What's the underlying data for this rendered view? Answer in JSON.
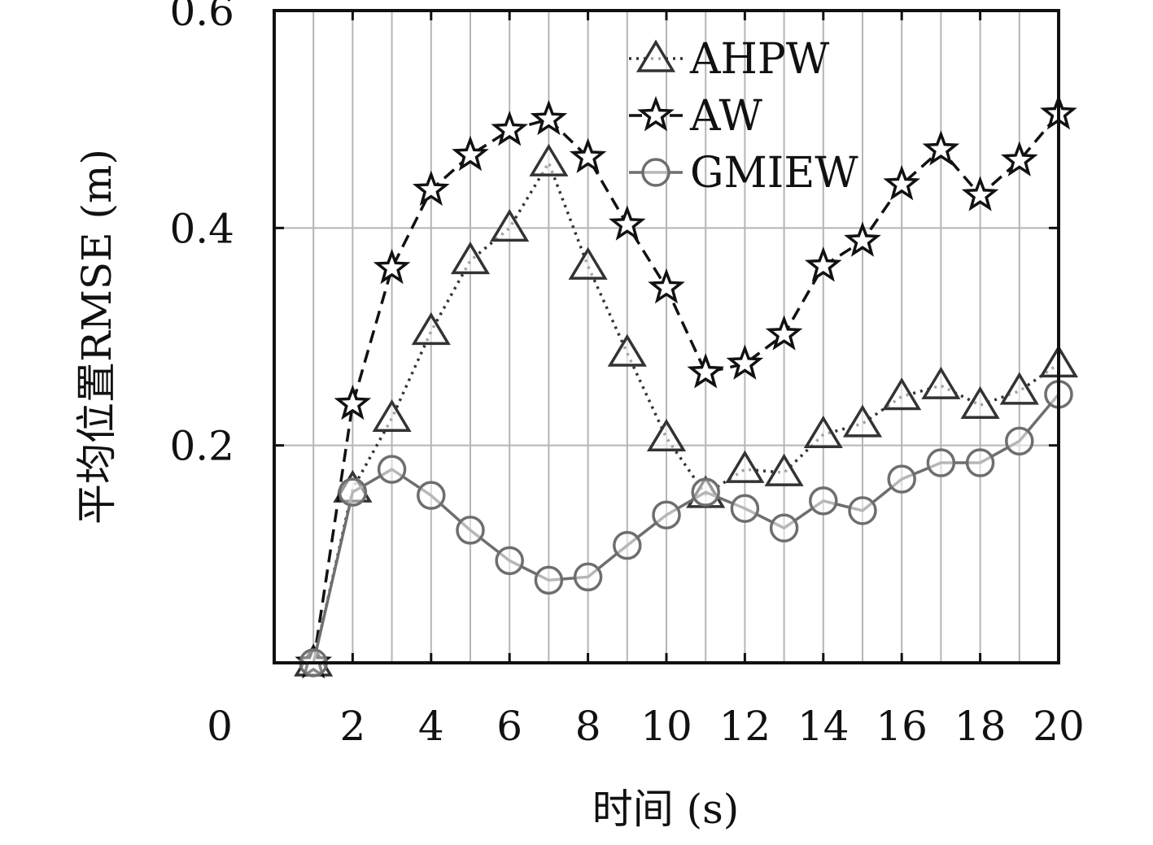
{
  "chart_data": {
    "type": "line",
    "xlabel": "时间 (s)",
    "ylabel": "平均位置RMSE (m)",
    "xlim": [
      0,
      20
    ],
    "ylim": [
      0,
      0.6
    ],
    "xticks": [
      2,
      4,
      6,
      8,
      10,
      12,
      14,
      16,
      18,
      20
    ],
    "xtick_labels": [
      "2",
      "4",
      "6",
      "8",
      "10",
      "12",
      "14",
      "16",
      "18",
      "20"
    ],
    "yticks": [
      0.2,
      0.4,
      0.6
    ],
    "ytick_labels": [
      "0.2",
      "0.4",
      "0.6"
    ],
    "origin_label": "0",
    "grid": true,
    "legend_position": "top-right",
    "x": [
      1,
      2,
      3,
      4,
      5,
      6,
      7,
      8,
      9,
      10,
      11,
      12,
      13,
      14,
      15,
      16,
      17,
      18,
      19,
      20
    ],
    "series": [
      {
        "name": "AHPW",
        "marker": "triangle",
        "line_style": "dotted",
        "color": "#333333",
        "values": [
          0.0,
          0.16,
          0.225,
          0.305,
          0.37,
          0.4,
          0.46,
          0.365,
          0.285,
          0.207,
          0.155,
          0.178,
          0.175,
          0.21,
          0.22,
          0.245,
          0.255,
          0.237,
          0.25,
          0.275
        ]
      },
      {
        "name": "AW",
        "marker": "star",
        "line_style": "dashed",
        "color": "#111111",
        "values": [
          0.0,
          0.238,
          0.363,
          0.435,
          0.467,
          0.49,
          0.5,
          0.465,
          0.403,
          0.345,
          0.267,
          0.275,
          0.302,
          0.365,
          0.388,
          0.44,
          0.472,
          0.43,
          0.462,
          0.505
        ]
      },
      {
        "name": "GMIEW",
        "marker": "circle",
        "line_style": "solid",
        "color": "#6e6e6e",
        "values": [
          0.0,
          0.157,
          0.178,
          0.154,
          0.122,
          0.094,
          0.076,
          0.079,
          0.108,
          0.136,
          0.157,
          0.142,
          0.124,
          0.149,
          0.14,
          0.169,
          0.184,
          0.184,
          0.204,
          0.247
        ]
      }
    ]
  }
}
